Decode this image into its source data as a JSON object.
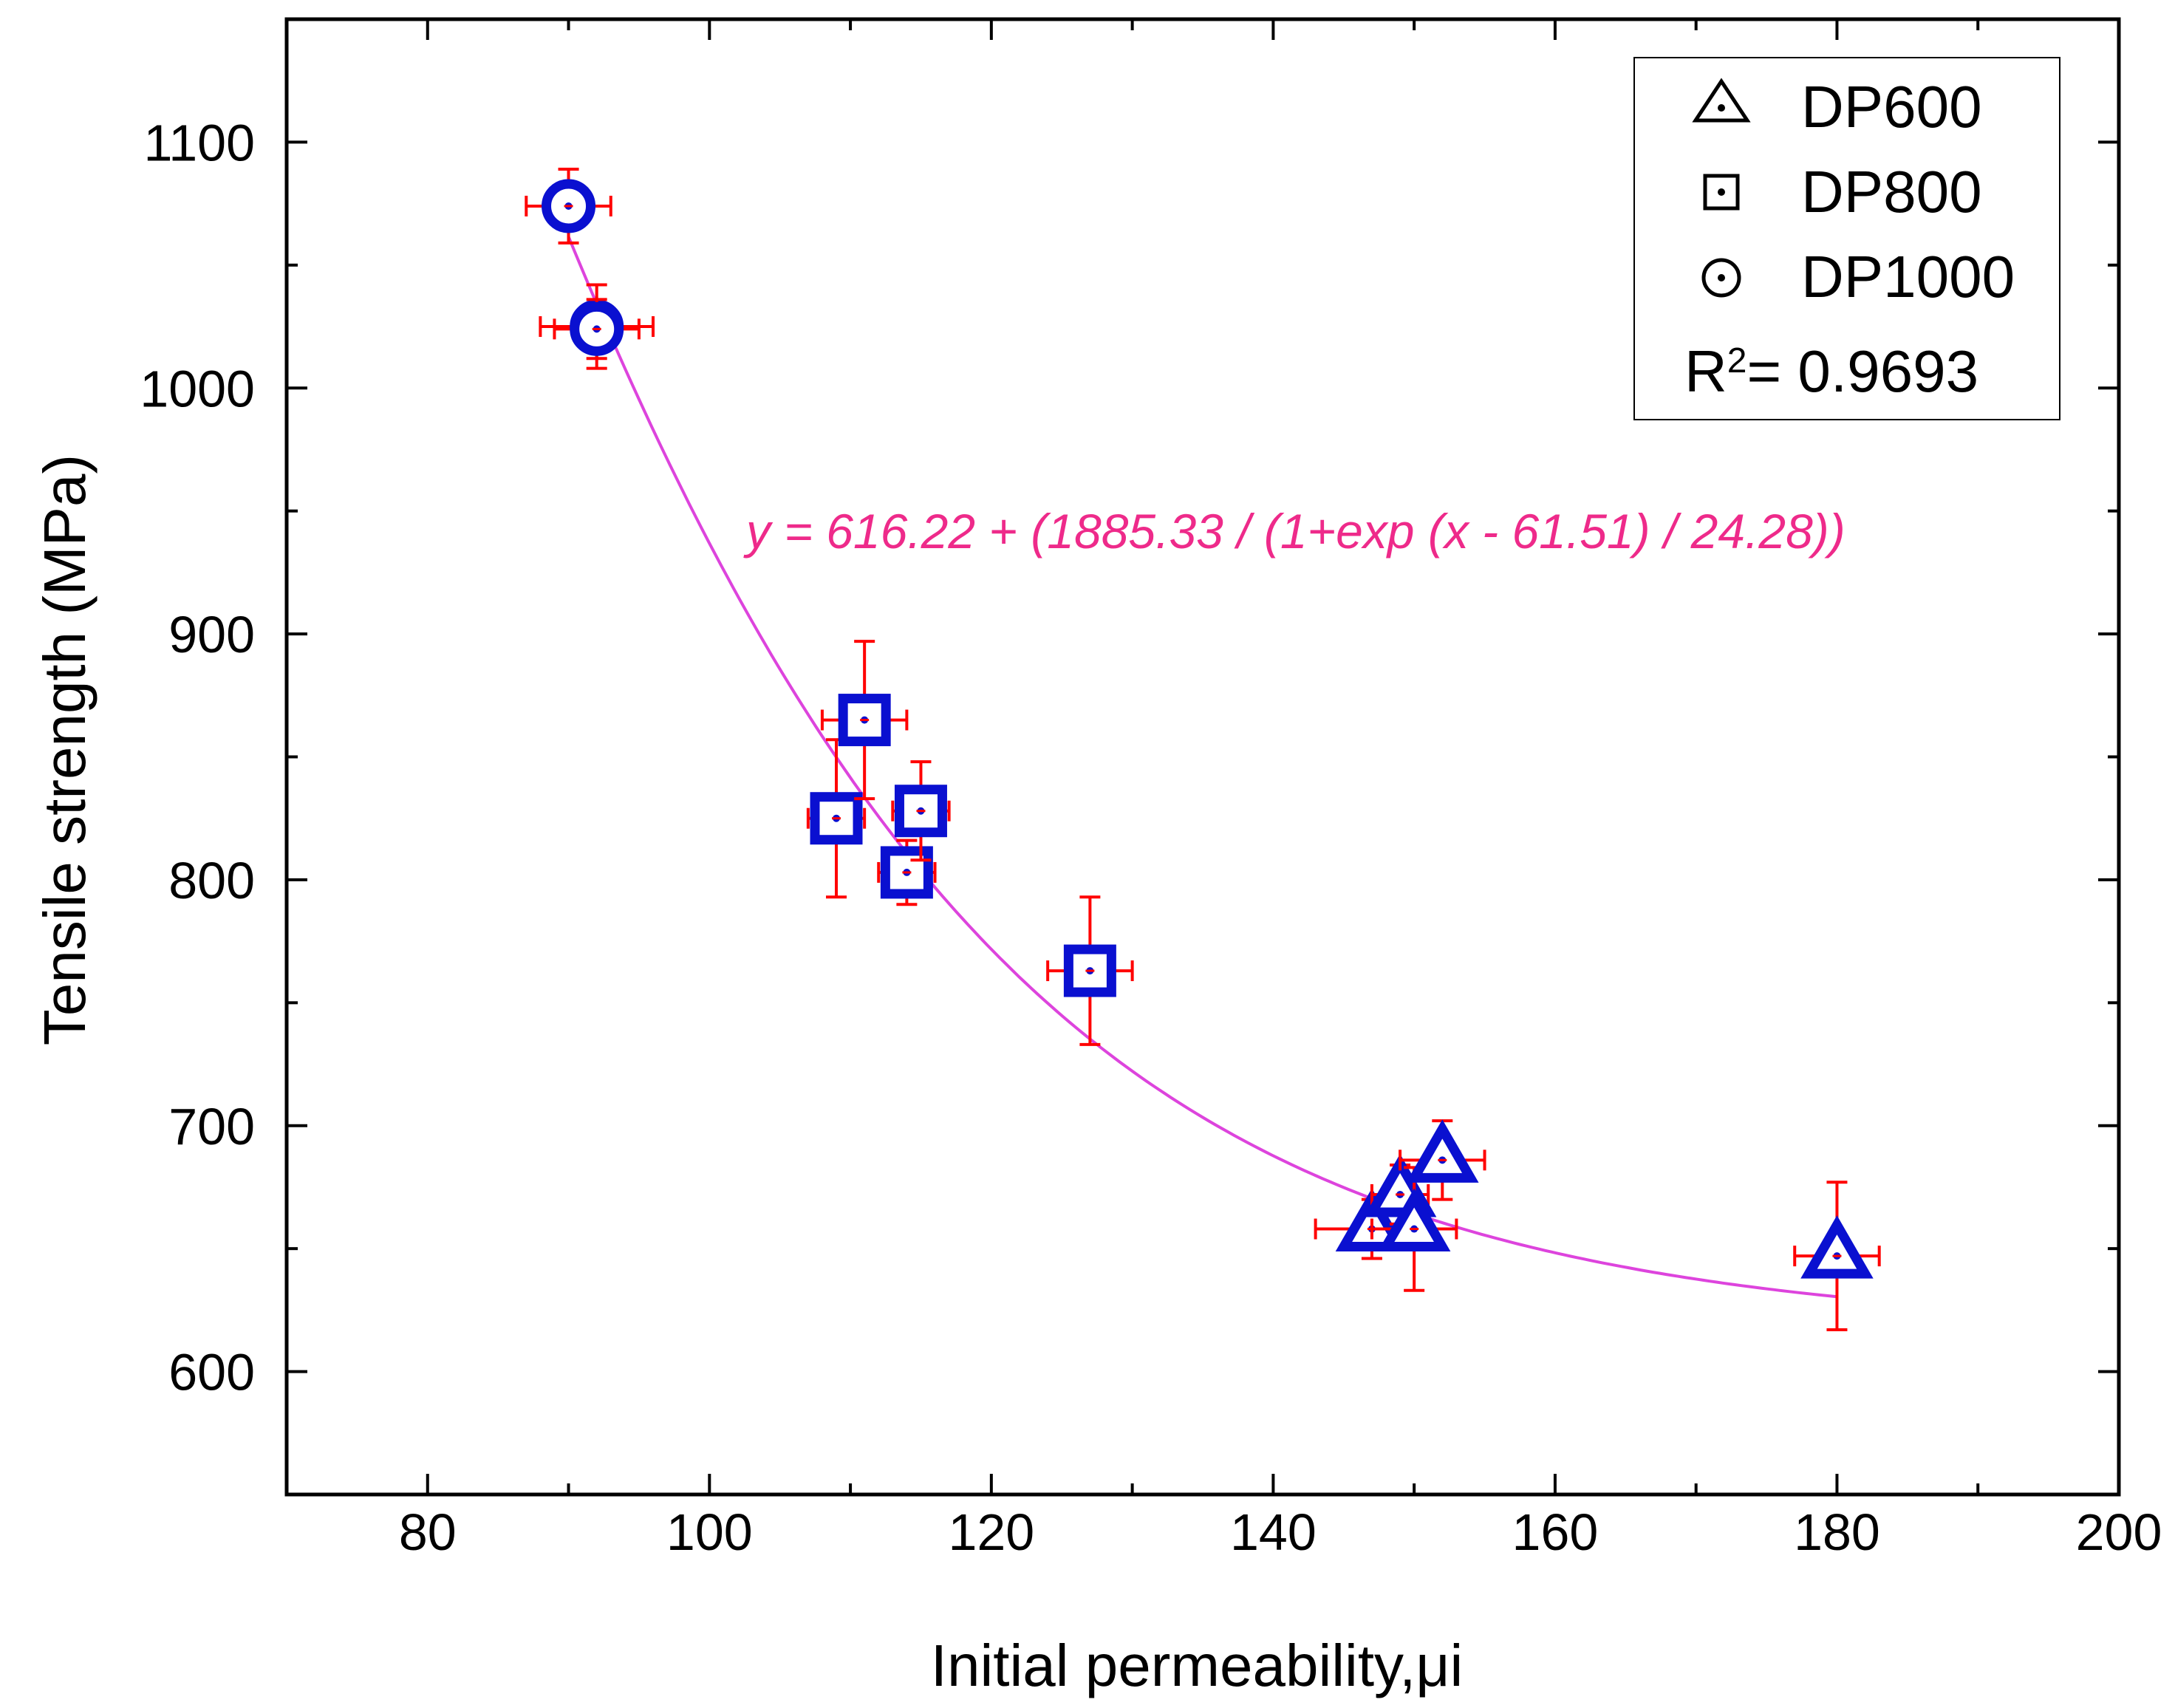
{
  "chart_data": {
    "type": "scatter",
    "xlabel": "Initial permeability,μi",
    "ylabel": "Tensile strength (MPa)",
    "xlim": [
      70,
      200
    ],
    "ylim": [
      550,
      1150
    ],
    "x_ticks": [
      "80",
      "100",
      "120",
      "140",
      "160",
      "180",
      "200"
    ],
    "y_ticks": [
      "600",
      "700",
      "800",
      "900",
      "1000",
      "1100"
    ],
    "series": [
      {
        "name": "DP600",
        "marker": "triangle",
        "points": [
          {
            "x": 147,
            "y": 658,
            "xerr": 4,
            "yerr": 12
          },
          {
            "x": 149,
            "y": 672,
            "xerr": 2,
            "yerr": 12
          },
          {
            "x": 150,
            "y": 658,
            "xerr": 3,
            "yerr": 25
          },
          {
            "x": 152,
            "y": 686,
            "xerr": 3,
            "yerr": 16
          },
          {
            "x": 180,
            "y": 647,
            "xerr": 3,
            "yerr": 30
          }
        ]
      },
      {
        "name": "DP800",
        "marker": "square",
        "points": [
          {
            "x": 109,
            "y": 825,
            "xerr": 2,
            "yerr": 32
          },
          {
            "x": 111,
            "y": 865,
            "xerr": 3,
            "yerr": 32
          },
          {
            "x": 114,
            "y": 803,
            "xerr": 2,
            "yerr": 13
          },
          {
            "x": 115,
            "y": 828,
            "xerr": 2,
            "yerr": 20
          },
          {
            "x": 127,
            "y": 763,
            "xerr": 3,
            "yerr": 30
          }
        ]
      },
      {
        "name": "DP1000",
        "marker": "circle",
        "points": [
          {
            "x": 90,
            "y": 1074,
            "xerr": 3,
            "yerr": 15
          },
          {
            "x": 92,
            "y": 1025,
            "xerr": 4,
            "yerr": 17
          },
          {
            "x": 92,
            "y": 1024,
            "xerr": 3,
            "yerr": 12
          }
        ]
      }
    ],
    "fit": {
      "equation": "y = 616.22 + (1885.33 / (1+exp (x - 61.51) / 24.28))",
      "y0": 616.22,
      "A": 1885.33,
      "x0": 61.51,
      "t": 24.28,
      "x_range": [
        90,
        180
      ]
    },
    "legend_entries": [
      "DP600",
      "DP800",
      "DP1000"
    ],
    "r2_label": "R",
    "r2_sup": "2",
    "r2_value": "= 0.9693",
    "legend_position": "top-right",
    "colors": {
      "marker": "#0a10d0",
      "errorbar": "#ff0000",
      "fit": "#dd44dd",
      "equation": "#ee2a8a"
    }
  }
}
